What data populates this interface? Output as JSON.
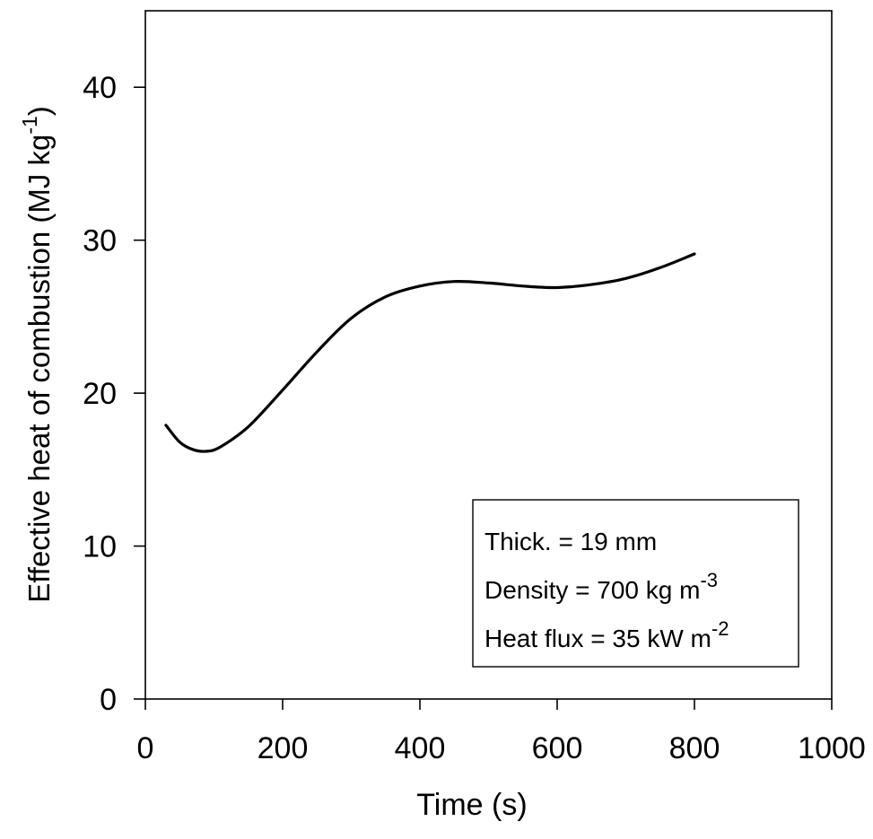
{
  "chart_data": {
    "type": "line",
    "title": "",
    "xlabel": "Time (s)",
    "ylabel": "Effective heat of combustion (MJ kg⁻¹)",
    "xlim": [
      0,
      1000
    ],
    "ylim": [
      0,
      45
    ],
    "x_ticks": [
      0,
      200,
      400,
      600,
      800,
      1000
    ],
    "x_tick_labels": [
      "0",
      "200",
      "400",
      "600",
      "800",
      "1000"
    ],
    "y_ticks": [
      0,
      10,
      20,
      30,
      40
    ],
    "y_tick_labels": [
      "0",
      "10",
      "20",
      "30",
      "40"
    ],
    "grid": false,
    "series": [
      {
        "x": [
          30,
          50,
          70,
          90,
          110,
          150,
          200,
          250,
          300,
          350,
          400,
          450,
          500,
          550,
          600,
          650,
          700,
          750,
          800
        ],
        "y": [
          17.9,
          16.8,
          16.3,
          16.2,
          16.5,
          17.8,
          20.2,
          22.7,
          24.9,
          26.3,
          27.0,
          27.3,
          27.2,
          27.0,
          26.9,
          27.1,
          27.5,
          28.2,
          29.1
        ]
      }
    ],
    "annotation_box": {
      "position": "lower-right",
      "lines": [
        {
          "text": "Thick. = 19 mm",
          "sup": ""
        },
        {
          "text": "Density = 700 kg m",
          "sup": "-3"
        },
        {
          "text": "Heat flux = 35 kW m",
          "sup": "-2"
        }
      ]
    },
    "ylabel_parts": {
      "text": "Effective heat of combustion (MJ kg",
      "sup": "-1",
      "close": ")"
    }
  }
}
